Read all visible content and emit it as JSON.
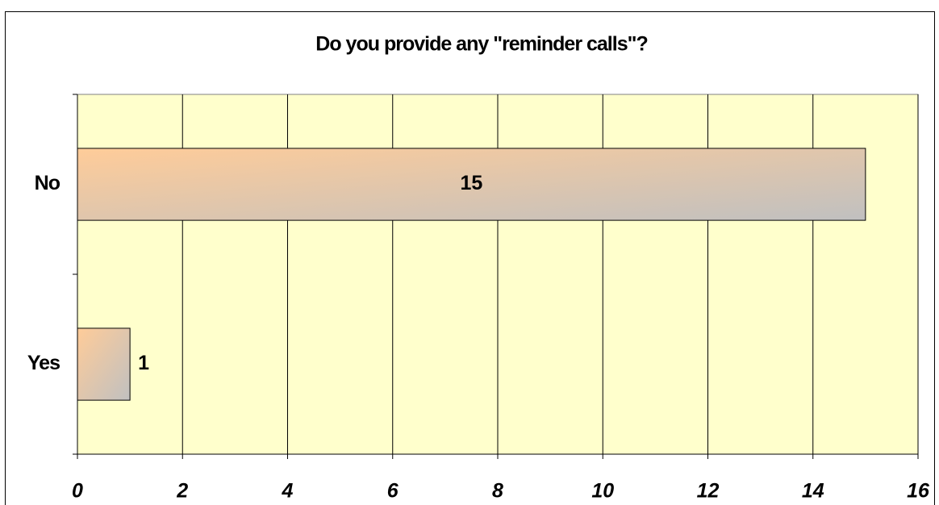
{
  "chart_data": {
    "type": "bar",
    "orientation": "horizontal",
    "title": "Do you provide any \"reminder calls\"?",
    "categories": [
      "No",
      "Yes"
    ],
    "values": [
      15,
      1
    ],
    "gradient": [
      "#ffcc99",
      "#c0c0c0"
    ],
    "background": "#ffffcc",
    "xlim": [
      0,
      16
    ],
    "xticks": [
      0,
      2,
      4,
      6,
      8,
      10,
      12,
      14,
      16
    ],
    "grid": true
  }
}
